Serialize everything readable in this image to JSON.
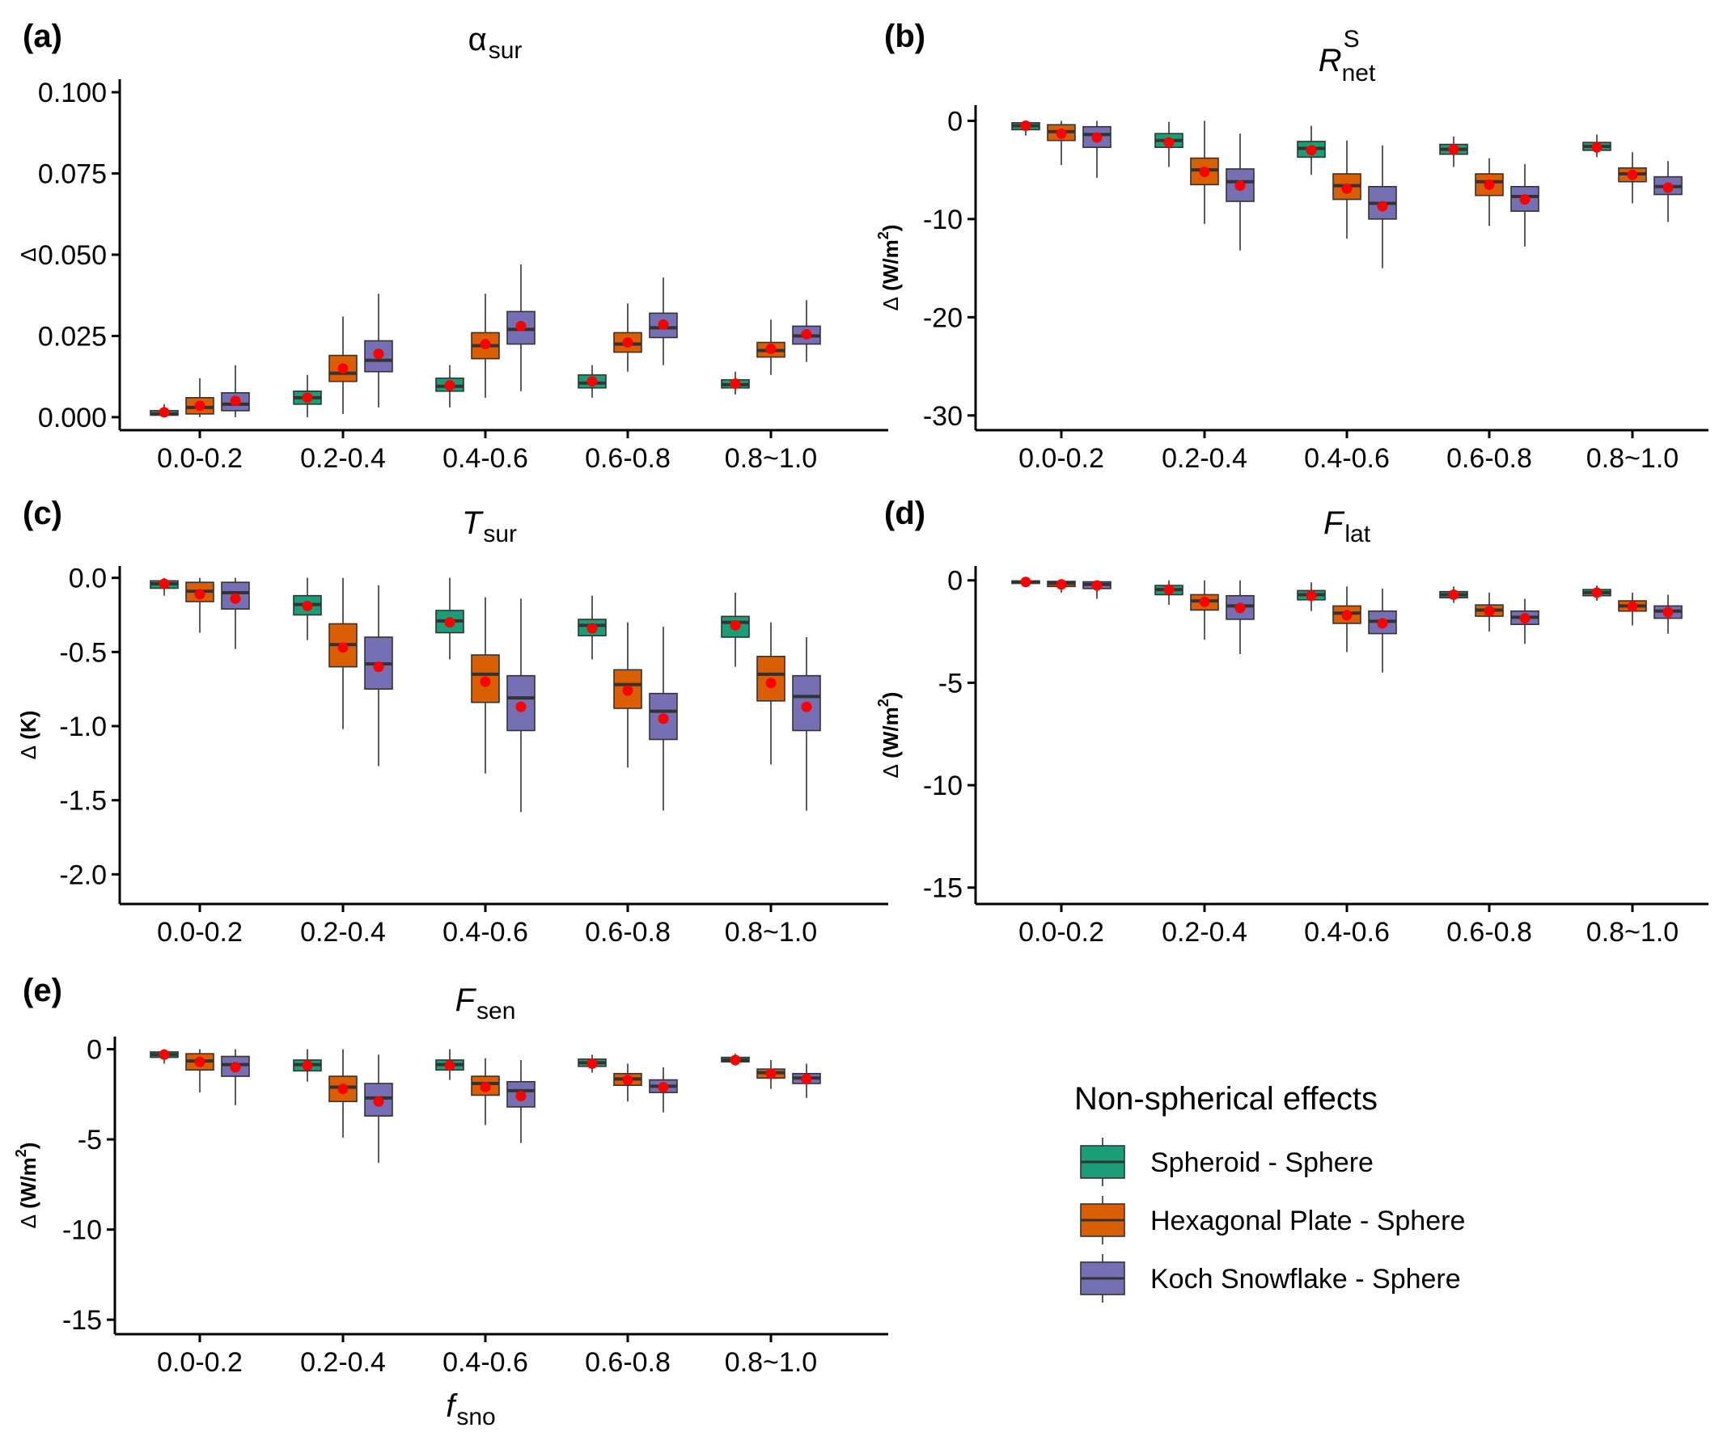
{
  "chart_data": [
    {
      "type": "box",
      "panel_label": "(a)",
      "title": {
        "main": "α",
        "sub": "sur",
        "sup": ""
      },
      "ylabel": {
        "symbol": "Δ",
        "unit": "",
        "unit_sup": "",
        "unit_end": ""
      },
      "xlabel": null,
      "categories": [
        "0.0-0.2",
        "0.2-0.4",
        "0.4-0.6",
        "0.6-0.8",
        "0.8~1.0"
      ],
      "ylim": [
        -0.004,
        0.104
      ],
      "yticks": [
        0.0,
        0.025,
        0.05,
        0.075,
        0.1
      ],
      "ytick_labels": [
        "0.000",
        "0.025",
        "0.050",
        "0.075",
        "0.100"
      ],
      "series": [
        {
          "name": "Spheroid - Sphere",
          "boxes": [
            {
              "min": 0.0,
              "q1": 0.0006,
              "median": 0.001,
              "q3": 0.002,
              "max": 0.004,
              "mean": 0.0015
            },
            {
              "min": 0.0,
              "q1": 0.004,
              "median": 0.006,
              "q3": 0.008,
              "max": 0.013,
              "mean": 0.006
            },
            {
              "min": 0.003,
              "q1": 0.008,
              "median": 0.0095,
              "q3": 0.012,
              "max": 0.016,
              "mean": 0.0098
            },
            {
              "min": 0.006,
              "q1": 0.009,
              "median": 0.0105,
              "q3": 0.013,
              "max": 0.016,
              "mean": 0.011
            },
            {
              "min": 0.007,
              "q1": 0.009,
              "median": 0.01,
              "q3": 0.0115,
              "max": 0.014,
              "mean": 0.0103
            }
          ]
        },
        {
          "name": "Hexagonal Plate - Sphere",
          "boxes": [
            {
              "min": 0.0,
              "q1": 0.001,
              "median": 0.003,
              "q3": 0.006,
              "max": 0.012,
              "mean": 0.0035
            },
            {
              "min": 0.001,
              "q1": 0.011,
              "median": 0.0135,
              "q3": 0.019,
              "max": 0.031,
              "mean": 0.015
            },
            {
              "min": 0.006,
              "q1": 0.018,
              "median": 0.022,
              "q3": 0.026,
              "max": 0.038,
              "mean": 0.0225
            },
            {
              "min": 0.014,
              "q1": 0.02,
              "median": 0.0225,
              "q3": 0.026,
              "max": 0.035,
              "mean": 0.023
            },
            {
              "min": 0.013,
              "q1": 0.0185,
              "median": 0.0205,
              "q3": 0.023,
              "max": 0.03,
              "mean": 0.021
            }
          ]
        },
        {
          "name": "Koch Snowflake - Sphere",
          "boxes": [
            {
              "min": 0.0,
              "q1": 0.002,
              "median": 0.004,
              "q3": 0.0075,
              "max": 0.016,
              "mean": 0.005
            },
            {
              "min": 0.003,
              "q1": 0.014,
              "median": 0.0175,
              "q3": 0.0235,
              "max": 0.038,
              "mean": 0.0195
            },
            {
              "min": 0.008,
              "q1": 0.0225,
              "median": 0.027,
              "q3": 0.0325,
              "max": 0.047,
              "mean": 0.028
            },
            {
              "min": 0.016,
              "q1": 0.0245,
              "median": 0.0275,
              "q3": 0.032,
              "max": 0.043,
              "mean": 0.0285
            },
            {
              "min": 0.017,
              "q1": 0.0225,
              "median": 0.025,
              "q3": 0.028,
              "max": 0.036,
              "mean": 0.0255
            }
          ]
        }
      ]
    },
    {
      "type": "box",
      "panel_label": "(b)",
      "title": {
        "main": "R",
        "sub": "net",
        "sup": "S"
      },
      "ylabel": {
        "symbol": "Δ",
        "unit": "(W/m",
        "unit_sup": "2",
        "unit_end": ")"
      },
      "xlabel": null,
      "categories": [
        "0.0-0.2",
        "0.2-0.4",
        "0.4-0.6",
        "0.6-0.8",
        "0.8~1.0"
      ],
      "ylim": [
        -31.5,
        1.6
      ],
      "yticks": [
        0,
        -10,
        -20,
        -30
      ],
      "ytick_labels": [
        "0",
        "-10",
        "-20",
        "-30"
      ],
      "series": [
        {
          "name": "Spheroid - Sphere",
          "boxes": [
            {
              "min": -1.5,
              "q1": -0.9,
              "median": -0.5,
              "q3": -0.2,
              "max": 0.0,
              "mean": -0.5
            },
            {
              "min": -4.7,
              "q1": -2.7,
              "median": -2.0,
              "q3": -1.3,
              "max": -0.1,
              "mean": -2.2
            },
            {
              "min": -5.5,
              "q1": -3.7,
              "median": -2.8,
              "q3": -2.1,
              "max": -0.5,
              "mean": -3.0
            },
            {
              "min": -4.7,
              "q1": -3.4,
              "median": -2.9,
              "q3": -2.4,
              "max": -1.6,
              "mean": -2.9
            },
            {
              "min": -3.7,
              "q1": -3.0,
              "median": -2.6,
              "q3": -2.2,
              "max": -1.4,
              "mean": -2.7
            }
          ]
        },
        {
          "name": "Hexagonal Plate - Sphere",
          "boxes": [
            {
              "min": -4.5,
              "q1": -2.0,
              "median": -1.1,
              "q3": -0.4,
              "max": 0.0,
              "mean": -1.3
            },
            {
              "min": -10.5,
              "q1": -6.5,
              "median": -5.0,
              "q3": -3.8,
              "max": 0.0,
              "mean": -5.2
            },
            {
              "min": -12.0,
              "q1": -8.0,
              "median": -6.6,
              "q3": -5.4,
              "max": -2.0,
              "mean": -6.9
            },
            {
              "min": -10.7,
              "q1": -7.6,
              "median": -6.2,
              "q3": -5.4,
              "max": -3.8,
              "mean": -6.5
            },
            {
              "min": -8.4,
              "q1": -6.2,
              "median": -5.4,
              "q3": -4.8,
              "max": -3.2,
              "mean": -5.5
            }
          ]
        },
        {
          "name": "Koch Snowflake - Sphere",
          "boxes": [
            {
              "min": -5.8,
              "q1": -2.7,
              "median": -1.4,
              "q3": -0.6,
              "max": 0.0,
              "mean": -1.7
            },
            {
              "min": -13.2,
              "q1": -8.2,
              "median": -6.2,
              "q3": -4.9,
              "max": -1.3,
              "mean": -6.6
            },
            {
              "min": -15.0,
              "q1": -10.0,
              "median": -8.4,
              "q3": -6.7,
              "max": -2.5,
              "mean": -8.7
            },
            {
              "min": -12.8,
              "q1": -9.2,
              "median": -7.7,
              "q3": -6.7,
              "max": -4.4,
              "mean": -8.0
            },
            {
              "min": -10.3,
              "q1": -7.5,
              "median": -6.7,
              "q3": -5.7,
              "max": -4.1,
              "mean": -6.8
            }
          ]
        }
      ]
    },
    {
      "type": "box",
      "panel_label": "(c)",
      "title": {
        "main": "T",
        "sub": "sur",
        "sup": ""
      },
      "ylabel": {
        "symbol": "Δ",
        "unit": "(K)",
        "unit_sup": "",
        "unit_end": ""
      },
      "xlabel": null,
      "categories": [
        "0.0-0.2",
        "0.2-0.4",
        "0.4-0.6",
        "0.6-0.8",
        "0.8~1.0"
      ],
      "ylim": [
        -2.2,
        0.08
      ],
      "yticks": [
        0.0,
        -0.5,
        -1.0,
        -1.5,
        -2.0
      ],
      "ytick_labels": [
        "0.0",
        "-0.5",
        "-1.0",
        "-1.5",
        "-2.0"
      ],
      "series": [
        {
          "name": "Spheroid - Sphere",
          "boxes": [
            {
              "min": -0.12,
              "q1": -0.07,
              "median": -0.04,
              "q3": -0.02,
              "max": 0.0,
              "mean": -0.04
            },
            {
              "min": -0.42,
              "q1": -0.25,
              "median": -0.18,
              "q3": -0.12,
              "max": 0.0,
              "mean": -0.19
            },
            {
              "min": -0.55,
              "q1": -0.37,
              "median": -0.29,
              "q3": -0.22,
              "max": 0.0,
              "mean": -0.3
            },
            {
              "min": -0.55,
              "q1": -0.39,
              "median": -0.32,
              "q3": -0.28,
              "max": -0.12,
              "mean": -0.34
            },
            {
              "min": -0.6,
              "q1": -0.4,
              "median": -0.3,
              "q3": -0.26,
              "max": -0.1,
              "mean": -0.32
            }
          ]
        },
        {
          "name": "Hexagonal Plate - Sphere",
          "boxes": [
            {
              "min": -0.37,
              "q1": -0.16,
              "median": -0.09,
              "q3": -0.03,
              "max": 0.0,
              "mean": -0.11
            },
            {
              "min": -1.02,
              "q1": -0.6,
              "median": -0.45,
              "q3": -0.31,
              "max": 0.0,
              "mean": -0.47
            },
            {
              "min": -1.32,
              "q1": -0.84,
              "median": -0.65,
              "q3": -0.52,
              "max": -0.13,
              "mean": -0.7
            },
            {
              "min": -1.28,
              "q1": -0.88,
              "median": -0.72,
              "q3": -0.62,
              "max": -0.3,
              "mean": -0.76
            },
            {
              "min": -1.26,
              "q1": -0.83,
              "median": -0.65,
              "q3": -0.53,
              "max": -0.3,
              "mean": -0.71
            }
          ]
        },
        {
          "name": "Koch Snowflake - Sphere",
          "boxes": [
            {
              "min": -0.48,
              "q1": -0.21,
              "median": -0.1,
              "q3": -0.03,
              "max": 0.0,
              "mean": -0.14
            },
            {
              "min": -1.27,
              "q1": -0.75,
              "median": -0.58,
              "q3": -0.4,
              "max": -0.05,
              "mean": -0.6
            },
            {
              "min": -1.58,
              "q1": -1.03,
              "median": -0.81,
              "q3": -0.66,
              "max": -0.14,
              "mean": -0.87
            },
            {
              "min": -1.57,
              "q1": -1.09,
              "median": -0.9,
              "q3": -0.78,
              "max": -0.33,
              "mean": -0.95
            },
            {
              "min": -1.57,
              "q1": -1.03,
              "median": -0.8,
              "q3": -0.66,
              "max": -0.4,
              "mean": -0.87
            }
          ]
        }
      ]
    },
    {
      "type": "box",
      "panel_label": "(d)",
      "title": {
        "main": "F",
        "sub": "lat",
        "sup": ""
      },
      "ylabel": {
        "symbol": "Δ",
        "unit": "(W/m",
        "unit_sup": "2",
        "unit_end": ")"
      },
      "xlabel": null,
      "categories": [
        "0.0-0.2",
        "0.2-0.4",
        "0.4-0.6",
        "0.6-0.8",
        "0.8~1.0"
      ],
      "ylim": [
        -15.8,
        0.7
      ],
      "yticks": [
        0,
        -5,
        -10,
        -15
      ],
      "ytick_labels": [
        "0",
        "-5",
        "-10",
        "-15"
      ],
      "series": [
        {
          "name": "Spheroid - Sphere",
          "boxes": [
            {
              "min": -0.3,
              "q1": -0.15,
              "median": -0.08,
              "q3": -0.03,
              "max": 0.0,
              "mean": -0.08
            },
            {
              "min": -1.2,
              "q1": -0.7,
              "median": -0.45,
              "q3": -0.25,
              "max": 0.0,
              "mean": -0.45
            },
            {
              "min": -1.5,
              "q1": -0.95,
              "median": -0.7,
              "q3": -0.5,
              "max": -0.1,
              "mean": -0.75
            },
            {
              "min": -1.1,
              "q1": -0.85,
              "median": -0.7,
              "q3": -0.55,
              "max": -0.3,
              "mean": -0.7
            },
            {
              "min": -1.0,
              "q1": -0.75,
              "median": -0.6,
              "q3": -0.45,
              "max": -0.25,
              "mean": -0.6
            }
          ]
        },
        {
          "name": "Hexagonal Plate - Sphere",
          "boxes": [
            {
              "min": -0.6,
              "q1": -0.3,
              "median": -0.15,
              "q3": -0.05,
              "max": 0.0,
              "mean": -0.2
            },
            {
              "min": -2.9,
              "q1": -1.45,
              "median": -1.0,
              "q3": -0.7,
              "max": 0.0,
              "mean": -1.05
            },
            {
              "min": -3.5,
              "q1": -2.1,
              "median": -1.6,
              "q3": -1.25,
              "max": -0.3,
              "mean": -1.7
            },
            {
              "min": -2.5,
              "q1": -1.75,
              "median": -1.45,
              "q3": -1.2,
              "max": -0.6,
              "mean": -1.5
            },
            {
              "min": -2.2,
              "q1": -1.5,
              "median": -1.25,
              "q3": -1.0,
              "max": -0.6,
              "mean": -1.28
            }
          ]
        },
        {
          "name": "Koch Snowflake - Sphere",
          "boxes": [
            {
              "min": -0.9,
              "q1": -0.4,
              "median": -0.2,
              "q3": -0.07,
              "max": 0.0,
              "mean": -0.25
            },
            {
              "min": -3.6,
              "q1": -1.9,
              "median": -1.25,
              "q3": -0.75,
              "max": 0.0,
              "mean": -1.35
            },
            {
              "min": -4.5,
              "q1": -2.6,
              "median": -2.0,
              "q3": -1.5,
              "max": -0.4,
              "mean": -2.1
            },
            {
              "min": -3.1,
              "q1": -2.15,
              "median": -1.8,
              "q3": -1.5,
              "max": -0.9,
              "mean": -1.85
            },
            {
              "min": -2.6,
              "q1": -1.85,
              "median": -1.5,
              "q3": -1.25,
              "max": -0.7,
              "mean": -1.55
            }
          ]
        }
      ]
    },
    {
      "type": "box",
      "panel_label": "(e)",
      "title": {
        "main": "F",
        "sub": "sen",
        "sup": ""
      },
      "ylabel": {
        "symbol": "Δ",
        "unit": "(W/m",
        "unit_sup": "2",
        "unit_end": ")"
      },
      "xlabel": {
        "main": "f",
        "sub": "sno"
      },
      "categories": [
        "0.0-0.2",
        "0.2-0.4",
        "0.4-0.6",
        "0.6-0.8",
        "0.8~1.0"
      ],
      "ylim": [
        -15.8,
        0.7
      ],
      "yticks": [
        0,
        -5,
        -10,
        -15
      ],
      "ytick_labels": [
        "0",
        "-5",
        "-10",
        "-15"
      ],
      "series": [
        {
          "name": "Spheroid - Sphere",
          "boxes": [
            {
              "min": -0.8,
              "q1": -0.45,
              "median": -0.3,
              "q3": -0.15,
              "max": 0.0,
              "mean": -0.3
            },
            {
              "min": -1.8,
              "q1": -1.2,
              "median": -0.85,
              "q3": -0.6,
              "max": 0.0,
              "mean": -0.9
            },
            {
              "min": -1.7,
              "q1": -1.15,
              "median": -0.85,
              "q3": -0.6,
              "max": 0.0,
              "mean": -0.9
            },
            {
              "min": -1.3,
              "q1": -0.95,
              "median": -0.75,
              "q3": -0.55,
              "max": -0.3,
              "mean": -0.8
            },
            {
              "min": -0.9,
              "q1": -0.7,
              "median": -0.6,
              "q3": -0.45,
              "max": -0.25,
              "mean": -0.6
            }
          ]
        },
        {
          "name": "Hexagonal Plate - Sphere",
          "boxes": [
            {
              "min": -2.4,
              "q1": -1.15,
              "median": -0.65,
              "q3": -0.25,
              "max": 0.0,
              "mean": -0.7
            },
            {
              "min": -4.9,
              "q1": -2.9,
              "median": -2.1,
              "q3": -1.5,
              "max": 0.0,
              "mean": -2.2
            },
            {
              "min": -4.2,
              "q1": -2.55,
              "median": -1.9,
              "q3": -1.5,
              "max": -0.5,
              "mean": -2.1
            },
            {
              "min": -2.9,
              "q1": -2.0,
              "median": -1.65,
              "q3": -1.35,
              "max": -0.8,
              "mean": -1.7
            },
            {
              "min": -2.2,
              "q1": -1.6,
              "median": -1.3,
              "q3": -1.1,
              "max": -0.6,
              "mean": -1.35
            }
          ]
        },
        {
          "name": "Koch Snowflake - Sphere",
          "boxes": [
            {
              "min": -3.1,
              "q1": -1.5,
              "median": -0.85,
              "q3": -0.4,
              "max": 0.0,
              "mean": -1.0
            },
            {
              "min": -6.3,
              "q1": -3.7,
              "median": -2.7,
              "q3": -1.9,
              "max": -0.3,
              "mean": -2.9
            },
            {
              "min": -5.2,
              "q1": -3.2,
              "median": -2.3,
              "q3": -1.8,
              "max": -0.6,
              "mean": -2.6
            },
            {
              "min": -3.5,
              "q1": -2.4,
              "median": -2.05,
              "q3": -1.7,
              "max": -1.0,
              "mean": -2.1
            },
            {
              "min": -2.7,
              "q1": -1.9,
              "median": -1.6,
              "q3": -1.35,
              "max": -0.8,
              "mean": -1.65
            }
          ]
        }
      ]
    }
  ],
  "legend": {
    "title": "Non-spherical effects",
    "items": [
      {
        "label": "Spheroid - Sphere",
        "color": "#1b9e77"
      },
      {
        "label": "Hexagonal Plate - Sphere",
        "color": "#d95f02"
      },
      {
        "label": "Koch Snowflake - Sphere",
        "color": "#7570b3"
      }
    ]
  },
  "colors": {
    "mean_marker": "#ff0000",
    "outline": "#333333"
  }
}
